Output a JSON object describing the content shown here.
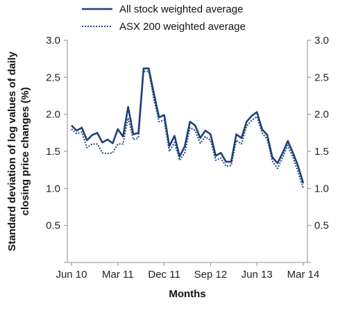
{
  "chart_data": {
    "type": "line",
    "title": "",
    "xlabel": "Months",
    "ylabel_lines": [
      "Standard deviation of log values of daily",
      "closing price changes (%)"
    ],
    "ylim": [
      0,
      3.0
    ],
    "y_ticks": [
      "0.5",
      "1.0",
      "1.5",
      "2.0",
      "2.5",
      "3.0"
    ],
    "y_tick_values": [
      0.5,
      1.0,
      1.5,
      2.0,
      2.5,
      3.0
    ],
    "x_tick_labels": [
      "Jun 10",
      "Mar 11",
      "Dec 11",
      "Sep 12",
      "Jun 13",
      "Mar 14"
    ],
    "x_tick_indices": [
      0,
      9,
      18,
      27,
      36,
      45
    ],
    "x_count": 46,
    "grid": false,
    "legend_position": "top-center",
    "series": [
      {
        "name": "All stock weighted average",
        "style": "solid",
        "color": "#1f3f7a",
        "values": [
          1.85,
          1.78,
          1.82,
          1.65,
          1.72,
          1.75,
          1.62,
          1.66,
          1.61,
          1.8,
          1.7,
          2.1,
          1.73,
          1.75,
          2.62,
          2.62,
          2.28,
          1.96,
          1.99,
          1.57,
          1.71,
          1.43,
          1.57,
          1.9,
          1.85,
          1.68,
          1.78,
          1.73,
          1.44,
          1.48,
          1.36,
          1.36,
          1.73,
          1.68,
          1.9,
          1.98,
          2.03,
          1.8,
          1.72,
          1.42,
          1.34,
          1.48,
          1.64,
          1.48,
          1.3,
          1.07
        ]
      },
      {
        "name": "ASX 200 weighted average",
        "style": "dotted",
        "color": "#1f3f7a",
        "values": [
          1.8,
          1.74,
          1.76,
          1.55,
          1.6,
          1.6,
          1.48,
          1.47,
          1.48,
          1.6,
          1.6,
          1.95,
          1.66,
          1.68,
          2.58,
          2.58,
          2.2,
          1.9,
          1.92,
          1.5,
          1.62,
          1.38,
          1.48,
          1.82,
          1.78,
          1.61,
          1.7,
          1.65,
          1.38,
          1.41,
          1.3,
          1.31,
          1.65,
          1.6,
          1.84,
          1.92,
          1.97,
          1.75,
          1.66,
          1.37,
          1.27,
          1.42,
          1.58,
          1.42,
          1.22,
          1.0
        ]
      }
    ]
  }
}
